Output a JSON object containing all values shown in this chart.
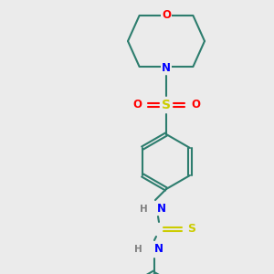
{
  "bg_color": "#ebebeb",
  "bond_color": "#2d7d6e",
  "colors": {
    "O": "#ff0000",
    "N": "#0000ff",
    "S_sulfonyl": "#cccc00",
    "S_thio": "#cccc00",
    "C": "#2d7d6e",
    "H": "#808080"
  },
  "figsize": [
    3.0,
    3.0
  ],
  "dpi": 100
}
